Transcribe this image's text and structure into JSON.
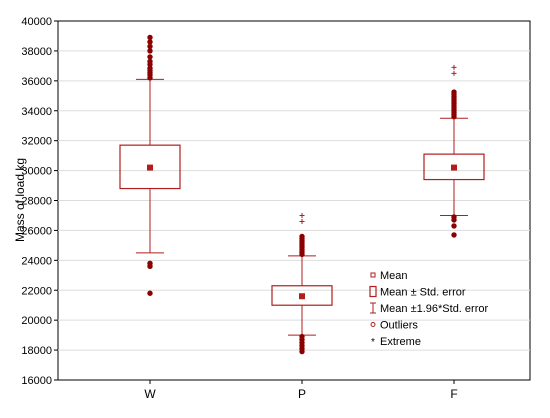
{
  "chart_data": {
    "type": "box",
    "ylabel": "Mass of load kg",
    "ylim": [
      16000,
      40000
    ],
    "yticks": [
      16000,
      18000,
      20000,
      22000,
      24000,
      26000,
      28000,
      30000,
      32000,
      34000,
      36000,
      38000,
      40000
    ],
    "grid": true,
    "legend_position": "right-inside",
    "colors": {
      "series": "#b01e1e",
      "outliers": "#8b0000",
      "grid": "#dddddd",
      "axis": "#000000"
    },
    "categories": [
      "W",
      "P",
      "F"
    ],
    "series": [
      {
        "category": "W",
        "mean": 30200,
        "se_low": 28800,
        "se_high": 31700,
        "ci_low": 24500,
        "ci_high": 36100,
        "outliers": [
          36200,
          36400,
          36550,
          36700,
          36850,
          37100,
          37300,
          37600,
          38000,
          38300,
          38600,
          38900,
          23800,
          23600,
          21800
        ],
        "extremes": []
      },
      {
        "category": "P",
        "mean": 21600,
        "se_low": 21000,
        "se_high": 22300,
        "ci_low": 19000,
        "ci_high": 24300,
        "outliers": [
          24400,
          24550,
          24700,
          24850,
          25000,
          25150,
          25300,
          25450,
          25600,
          18900,
          18700,
          18500,
          18300,
          18100,
          17900
        ],
        "extremes": [
          26600,
          27000
        ]
      },
      {
        "category": "F",
        "mean": 30200,
        "se_low": 29400,
        "se_high": 31100,
        "ci_low": 27000,
        "ci_high": 33500,
        "outliers": [
          33600,
          33750,
          33900,
          34050,
          34200,
          34350,
          34500,
          34650,
          34800,
          34950,
          35100,
          35250,
          26900,
          26700,
          26300,
          25700
        ],
        "extremes": [
          36500,
          36900
        ]
      }
    ],
    "legend": [
      {
        "symbol": "mean",
        "label": "Mean"
      },
      {
        "symbol": "box",
        "label": "Mean ± Std. error"
      },
      {
        "symbol": "whisker",
        "label": "Mean ±1.96*Std. error"
      },
      {
        "symbol": "outlier",
        "label": "Outliers"
      },
      {
        "symbol": "extreme",
        "label": "Extreme"
      }
    ]
  }
}
